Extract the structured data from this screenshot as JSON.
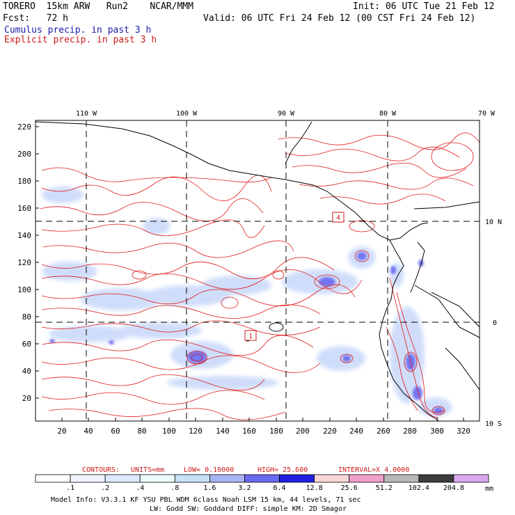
{
  "header": {
    "model_title": "TORERO  15km ARW   Run2    NCAR/MMM",
    "init_label": "Init: 06 UTC Tue 21 Feb 12",
    "fcst_label": "Fcst:   72 h",
    "valid_label": "Valid: 06 UTC Fri 24 Feb 12 (00 CST Fri 24 Feb 12)",
    "legend_cumulus": "Cumulus precip. in past 3 h",
    "legend_explicit": "Explicit precip. in past 3 h"
  },
  "map": {
    "lon_labels": [
      "110 W",
      "100 W",
      "90 W",
      "80 W",
      "70 W"
    ],
    "lat_labels": [
      "10 N",
      "0",
      "10 S"
    ],
    "y_ticks": [
      "220",
      "200",
      "180",
      "160",
      "140",
      "120",
      "100",
      "80",
      "60",
      "40",
      "20"
    ],
    "x_ticks": [
      "20",
      "40",
      "60",
      "80",
      "100",
      "120",
      "140",
      "160",
      "180",
      "200",
      "220",
      "240",
      "260",
      "280",
      "300",
      "320"
    ],
    "contour_box_labels": [
      "4",
      "1"
    ]
  },
  "contours_line": {
    "label": "CONTOURS:",
    "units": "UNITS=mm",
    "low": "LOW= 0.10000",
    "high": "HIGH=  25.600",
    "interval": "INTERVAL=X  4.0000"
  },
  "colorbar": {
    "labels": [
      ".1",
      ".2",
      ".4",
      ".8",
      "1.6",
      "3.2",
      "6.4",
      "12.8",
      "25.6",
      "51.2",
      "102.4",
      "204.8"
    ],
    "unit": "mm",
    "colors": [
      "#ffffff",
      "#f0f4ff",
      "#dde8ff",
      "#eefafa",
      "#c8e0f8",
      "#aab4f4",
      "#6a6af0",
      "#2020e0",
      "#f6d6d6",
      "#f0a0c8",
      "#b8b8b8",
      "#3c3c3c",
      "#d8a8f0"
    ]
  },
  "footer": {
    "line1": "Model Info: V3.3.1   KF      YSU PBL   WDM 6class  Noah LSM  15 km,   44 levels,   71 sec",
    "line2": "LW: Godd SW: Goddard DIFF: simple KM: 2D Smagor"
  }
}
